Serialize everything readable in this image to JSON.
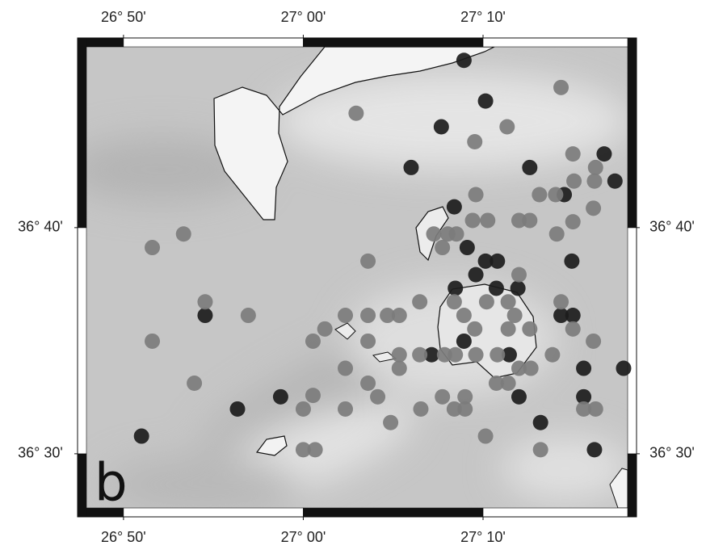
{
  "chart_data": {
    "type": "scatter",
    "panel_label": "b",
    "xlim": [
      26.7907,
      27.309
    ],
    "ylim": [
      36.4535,
      36.8065
    ],
    "xticks": [
      {
        "value": 26.8333,
        "label": "26° 50'"
      },
      {
        "value": 27.0,
        "label": "27° 00'"
      },
      {
        "value": 27.1667,
        "label": "27° 10'"
      }
    ],
    "yticks": [
      {
        "value": 36.5,
        "label": "36° 30'"
      },
      {
        "value": 36.6667,
        "label": "36° 40'"
      }
    ],
    "series": [
      {
        "color": "#1c1c1c",
        "x": [
          27.149,
          27.169,
          27.128,
          27.1,
          27.21,
          27.279,
          27.289,
          27.242,
          27.14,
          27.152,
          27.169,
          27.18,
          27.249,
          27.16,
          27.141,
          27.179,
          27.199,
          26.909,
          27.239,
          27.25,
          27.149,
          27.119,
          27.191,
          27.26,
          27.297,
          26.979,
          27.2,
          27.26,
          26.939,
          27.22,
          26.85,
          27.27
        ],
        "y": [
          36.79,
          36.76,
          36.741,
          36.711,
          36.711,
          36.721,
          36.701,
          36.691,
          36.682,
          36.652,
          36.642,
          36.642,
          36.642,
          36.632,
          36.622,
          36.622,
          36.622,
          36.602,
          36.602,
          36.602,
          36.583,
          36.573,
          36.573,
          36.563,
          36.563,
          36.542,
          36.542,
          36.542,
          36.533,
          36.523,
          36.513,
          36.503
        ]
      },
      {
        "color": "#7c7c7c",
        "x": [
          27.239,
          27.049,
          27.189,
          27.159,
          27.25,
          27.271,
          27.251,
          27.27,
          27.16,
          27.219,
          27.234,
          27.269,
          27.25,
          27.157,
          27.171,
          27.2,
          27.21,
          27.134,
          27.121,
          27.142,
          27.235,
          27.129,
          26.86,
          26.889,
          27.06,
          27.2,
          26.909,
          26.949,
          27.039,
          27.06,
          27.078,
          27.089,
          27.108,
          27.14,
          27.17,
          27.19,
          27.239,
          27.25,
          27.02,
          27.009,
          27.06,
          27.149,
          27.159,
          27.196,
          27.21,
          27.19,
          26.86,
          27.269,
          27.089,
          27.108,
          27.131,
          27.141,
          27.16,
          27.18,
          27.231,
          27.039,
          27.06,
          27.089,
          27.2,
          27.211,
          26.899,
          27.179,
          27.19,
          27.009,
          27.039,
          27.069,
          27.129,
          27.15,
          27.0,
          27.109,
          27.14,
          27.15,
          27.26,
          27.271,
          27.081,
          27.169,
          27.0,
          27.011,
          27.22
        ],
        "y": [
          36.77,
          36.751,
          36.741,
          36.73,
          36.721,
          36.711,
          36.701,
          36.701,
          36.691,
          36.691,
          36.691,
          36.681,
          36.671,
          36.672,
          36.672,
          36.672,
          36.672,
          36.662,
          36.662,
          36.662,
          36.662,
          36.652,
          36.652,
          36.662,
          36.642,
          36.632,
          36.612,
          36.602,
          36.602,
          36.602,
          36.602,
          36.602,
          36.612,
          36.612,
          36.612,
          36.612,
          36.612,
          36.592,
          36.592,
          36.583,
          36.583,
          36.602,
          36.592,
          36.602,
          36.592,
          36.592,
          36.583,
          36.583,
          36.573,
          36.573,
          36.573,
          36.573,
          36.573,
          36.573,
          36.573,
          36.563,
          36.552,
          36.563,
          36.563,
          36.563,
          36.552,
          36.552,
          36.552,
          36.543,
          36.533,
          36.542,
          36.542,
          36.542,
          36.533,
          36.533,
          36.533,
          36.533,
          36.533,
          36.533,
          36.523,
          36.513,
          36.503,
          36.503,
          36.503
        ]
      }
    ]
  }
}
